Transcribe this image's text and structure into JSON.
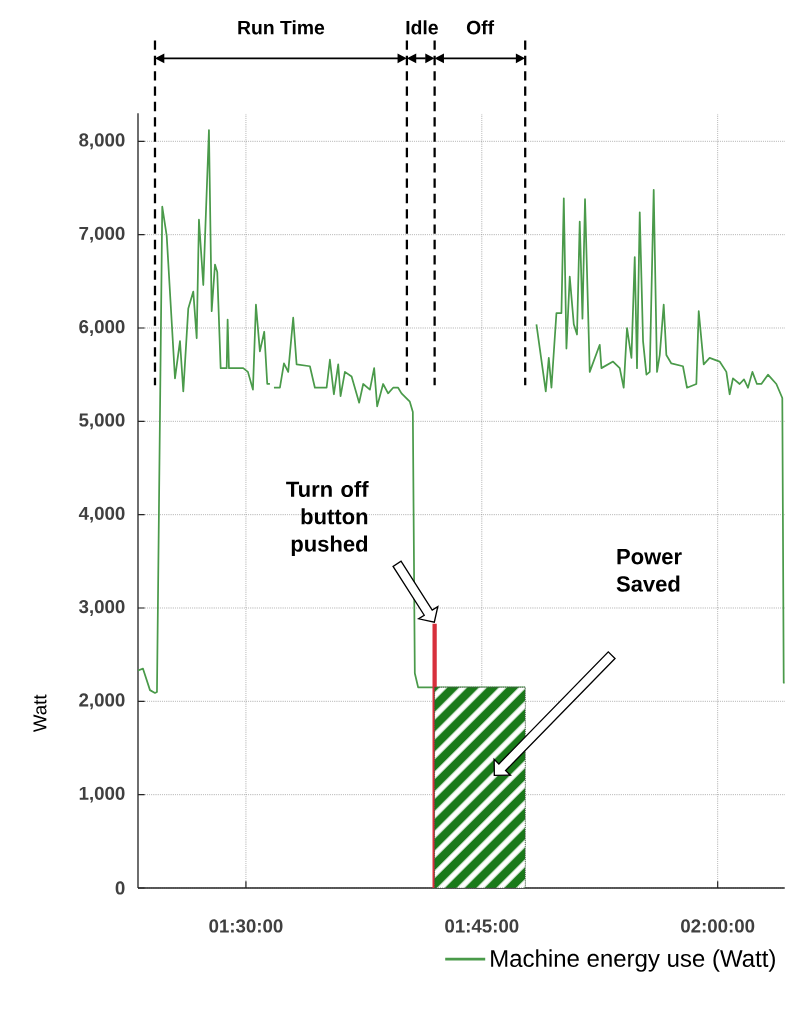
{
  "chart_data": {
    "type": "line",
    "ylabel": "Watt",
    "xlim": [
      1.3856,
      2.071
    ],
    "ylim": [
      0,
      8300
    ],
    "xticks": [
      {
        "value": 1.5,
        "label": "01:30:00"
      },
      {
        "value": 1.75,
        "label": "01:45:00"
      },
      {
        "value": 2.0,
        "label": "02:00:00"
      }
    ],
    "yticks": [
      0,
      {
        "value": 1000,
        "label": "1,000"
      },
      {
        "value": 2000,
        "label": "2,000"
      },
      {
        "value": 3000,
        "label": "3,000"
      },
      {
        "value": 4000,
        "label": "4,000"
      },
      {
        "value": 5000,
        "label": "5,000"
      },
      {
        "value": 6000,
        "label": "6,000"
      },
      {
        "value": 7000,
        "label": "7,000"
      },
      {
        "value": 8000,
        "label": "8,000"
      }
    ],
    "grid": true,
    "legend": "bottom",
    "series": [
      {
        "name": "Machine energy use (Watt)",
        "color": "#4a9a4a",
        "x": [
          1.3856,
          1.3909,
          1.3983,
          1.4036,
          1.4057,
          1.4113,
          1.416,
          1.4248,
          1.4301,
          1.4336,
          1.4389,
          1.4442,
          1.4478,
          1.4502,
          1.4548,
          1.4608,
          1.4637,
          1.4672,
          1.4696,
          1.4732,
          1.4796,
          1.4806,
          1.482,
          1.4971,
          1.5021,
          1.5074,
          1.5106,
          1.5148,
          1.5194,
          1.5226,
          1.5254,
          1.527,
          1.5297,
          1.536,
          1.5403,
          1.5448,
          1.5501,
          1.5537,
          1.5678,
          1.5731,
          1.5855,
          1.589,
          1.5932,
          1.5978,
          1.6003,
          1.6049,
          1.612,
          1.62,
          1.6243,
          1.6314,
          1.6359,
          1.6391,
          1.6454,
          1.6507,
          1.656,
          1.6613,
          1.6649,
          1.6737,
          1.6769,
          1.679,
          1.6825,
          1.796,
          1.801,
          1.8079,
          1.8178,
          1.821,
          1.8238,
          1.8291,
          1.8344,
          1.8369,
          1.8397,
          1.8432,
          1.8475,
          1.8509,
          1.8538,
          1.8567,
          1.8594,
          1.8644,
          1.875,
          1.8768,
          1.8891,
          1.8962,
          1.9004,
          1.9039,
          1.9086,
          1.9121,
          1.9145,
          1.9174,
          1.9209,
          1.9245,
          1.928,
          1.9322,
          1.9357,
          1.9386,
          1.9428,
          1.9456,
          1.9509,
          1.9632,
          1.9675,
          1.9774,
          1.9799,
          1.9852,
          1.9915,
          2.0021,
          2.0092,
          2.0127,
          2.0162,
          2.0233,
          2.0279,
          2.0321,
          2.0368,
          2.0416,
          2.0463,
          2.0533,
          2.0622,
          2.0685,
          2.07,
          2.071
        ],
        "values": [
          2330,
          2350,
          2120,
          2090,
          2100,
          7300,
          6990,
          5460,
          5860,
          5320,
          6210,
          6390,
          5890,
          7160,
          6460,
          8120,
          6180,
          6680,
          6600,
          5570,
          5570,
          6090,
          5570,
          5570,
          5530,
          5340,
          6250,
          5750,
          5960,
          5400,
          5400,
          null,
          5360,
          5360,
          5620,
          5530,
          6110,
          5610,
          5590,
          5360,
          5360,
          5660,
          5290,
          5610,
          5270,
          5530,
          5480,
          5200,
          5400,
          5340,
          5570,
          5160,
          5400,
          5300,
          5360,
          5360,
          5300,
          5210,
          5100,
          2300,
          2150,
          2150,
          null,
          6040,
          5320,
          5680,
          5360,
          6160,
          6160,
          7390,
          5780,
          6550,
          6040,
          5930,
          7140,
          6100,
          7380,
          5530,
          5820,
          5570,
          5640,
          5570,
          5360,
          6000,
          5680,
          6760,
          5570,
          7240,
          5860,
          5500,
          5530,
          7480,
          5530,
          5710,
          6250,
          5710,
          5620,
          5590,
          5360,
          5400,
          6180,
          5610,
          5680,
          5640,
          5530,
          5290,
          5460,
          5400,
          5450,
          5360,
          5530,
          5400,
          5400,
          5500,
          5400,
          5250,
          2200,
          2200
        ]
      },
      {
        "type": "line",
        "color": "#d7303c",
        "x": [
          1.7,
          1.7
        ],
        "values": [
          0,
          2830
        ]
      },
      {
        "type": "area",
        "color": "#1a7a1a",
        "x": [
          1.7,
          1.796
        ],
        "values": [
          2150,
          2150
        ]
      }
    ],
    "ref_lines": [
      {
        "axis": "x",
        "value": 1.4036,
        "color": "#000000",
        "line_style": "dashed"
      },
      {
        "axis": "x",
        "value": 1.6706,
        "color": "#000000",
        "line_style": "dashed"
      },
      {
        "axis": "x",
        "value": 1.7,
        "color": "#000000",
        "line_style": "dashed"
      },
      {
        "axis": "x",
        "value": 1.796,
        "color": "#000000",
        "line_style": "dashed"
      }
    ],
    "annotations": [
      "Run Time",
      "Idle",
      "Off",
      "Turn off button pushed",
      "Power Saved"
    ]
  }
}
